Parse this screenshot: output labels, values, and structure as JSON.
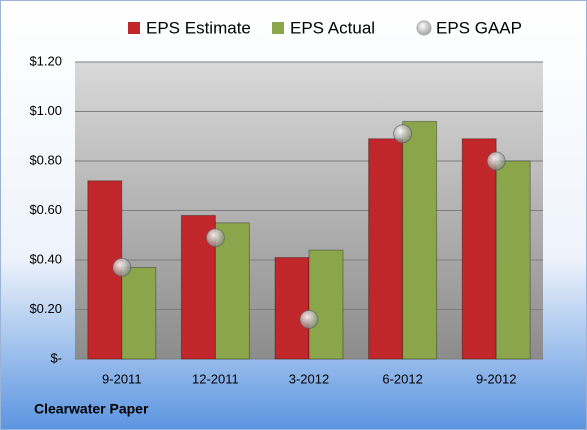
{
  "chart_data": {
    "type": "bar",
    "title": "Clearwater Paper",
    "categories": [
      "9-2011",
      "12-2011",
      "3-2012",
      "6-2012",
      "9-2012"
    ],
    "series": [
      {
        "name": "EPS Estimate",
        "color": "#c0262a",
        "values": [
          0.72,
          0.58,
          0.41,
          0.89,
          0.89
        ]
      },
      {
        "name": "EPS Actual",
        "color": "#8aa54a",
        "values": [
          0.37,
          0.55,
          0.44,
          0.96,
          0.8
        ]
      },
      {
        "name": "EPS GAAP",
        "color": "#a6a6a6",
        "type": "scatter",
        "values": [
          0.37,
          0.49,
          0.16,
          0.91,
          0.8
        ]
      }
    ],
    "ylim": [
      0,
      1.2
    ],
    "yticks": [
      {
        "value": 0,
        "label": "$-"
      },
      {
        "value": 0.2,
        "label": "$0.20"
      },
      {
        "value": 0.4,
        "label": "$0.40"
      },
      {
        "value": 0.6,
        "label": "$0.60"
      },
      {
        "value": 0.8,
        "label": "$0.80"
      },
      {
        "value": 1.0,
        "label": "$1.00"
      },
      {
        "value": 1.2,
        "label": "$1.20"
      }
    ],
    "grid": true
  }
}
